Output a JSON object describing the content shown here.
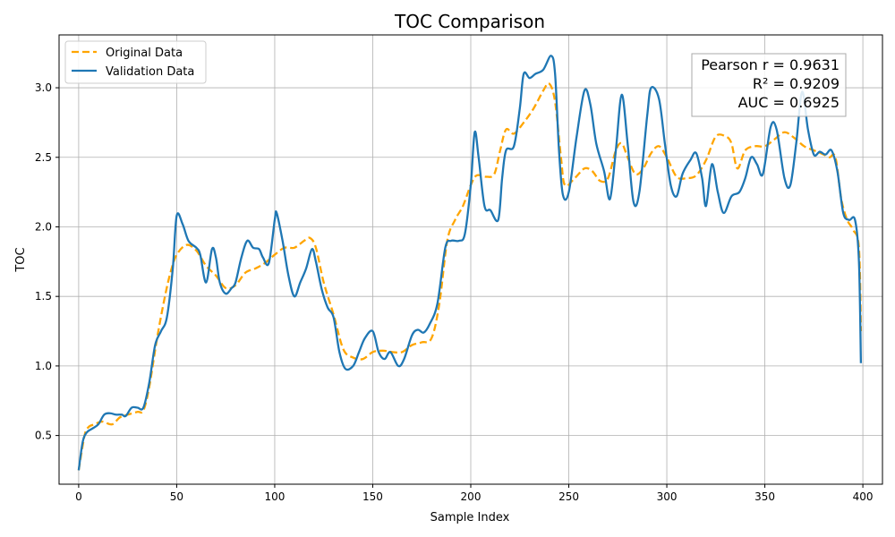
{
  "chart_data": {
    "type": "line",
    "title": "TOC Comparison",
    "xlabel": "Sample Index",
    "ylabel": "TOC",
    "xlim": [
      -10,
      410
    ],
    "ylim": [
      0.15,
      3.38
    ],
    "xticks": [
      0,
      50,
      100,
      150,
      200,
      250,
      300,
      350,
      400
    ],
    "yticks": [
      0.5,
      1.0,
      1.5,
      2.0,
      2.5,
      3.0
    ],
    "xtick_labels": [
      "0",
      "50",
      "100",
      "150",
      "200",
      "250",
      "300",
      "350",
      "400"
    ],
    "ytick_labels": [
      "0.5",
      "1.0",
      "1.5",
      "2.0",
      "2.5",
      "3.0"
    ],
    "grid": true,
    "legend_position": "top-left",
    "series": [
      {
        "name": "Original Data",
        "color": "#ffa500",
        "style": "dashed",
        "points": [
          [
            0,
            0.25
          ],
          [
            3,
            0.5
          ],
          [
            5,
            0.56
          ],
          [
            8,
            0.58
          ],
          [
            12,
            0.6
          ],
          [
            17,
            0.58
          ],
          [
            21,
            0.63
          ],
          [
            25,
            0.65
          ],
          [
            30,
            0.67
          ],
          [
            33,
            0.68
          ],
          [
            36,
            0.85
          ],
          [
            40,
            1.2
          ],
          [
            44,
            1.5
          ],
          [
            47,
            1.68
          ],
          [
            50,
            1.8
          ],
          [
            55,
            1.87
          ],
          [
            60,
            1.83
          ],
          [
            65,
            1.72
          ],
          [
            70,
            1.65
          ],
          [
            75,
            1.56
          ],
          [
            80,
            1.58
          ],
          [
            85,
            1.67
          ],
          [
            90,
            1.7
          ],
          [
            95,
            1.74
          ],
          [
            100,
            1.8
          ],
          [
            105,
            1.85
          ],
          [
            110,
            1.85
          ],
          [
            115,
            1.9
          ],
          [
            118,
            1.92
          ],
          [
            121,
            1.85
          ],
          [
            125,
            1.6
          ],
          [
            130,
            1.37
          ],
          [
            135,
            1.12
          ],
          [
            140,
            1.06
          ],
          [
            145,
            1.05
          ],
          [
            150,
            1.1
          ],
          [
            155,
            1.11
          ],
          [
            160,
            1.1
          ],
          [
            165,
            1.1
          ],
          [
            170,
            1.15
          ],
          [
            175,
            1.17
          ],
          [
            180,
            1.2
          ],
          [
            184,
            1.45
          ],
          [
            188,
            1.9
          ],
          [
            192,
            2.05
          ],
          [
            196,
            2.15
          ],
          [
            200,
            2.3
          ],
          [
            203,
            2.37
          ],
          [
            208,
            2.36
          ],
          [
            212,
            2.38
          ],
          [
            215,
            2.55
          ],
          [
            218,
            2.7
          ],
          [
            222,
            2.67
          ],
          [
            227,
            2.75
          ],
          [
            232,
            2.85
          ],
          [
            237,
            2.98
          ],
          [
            240,
            3.03
          ],
          [
            243,
            2.9
          ],
          [
            246,
            2.5
          ],
          [
            248,
            2.3
          ],
          [
            253,
            2.35
          ],
          [
            258,
            2.42
          ],
          [
            262,
            2.4
          ],
          [
            266,
            2.33
          ],
          [
            270,
            2.35
          ],
          [
            274,
            2.55
          ],
          [
            277,
            2.6
          ],
          [
            280,
            2.5
          ],
          [
            284,
            2.38
          ],
          [
            288,
            2.42
          ],
          [
            292,
            2.53
          ],
          [
            296,
            2.58
          ],
          [
            300,
            2.5
          ],
          [
            305,
            2.36
          ],
          [
            310,
            2.35
          ],
          [
            315,
            2.37
          ],
          [
            320,
            2.48
          ],
          [
            325,
            2.65
          ],
          [
            330,
            2.65
          ],
          [
            333,
            2.6
          ],
          [
            336,
            2.42
          ],
          [
            340,
            2.55
          ],
          [
            345,
            2.58
          ],
          [
            350,
            2.58
          ],
          [
            355,
            2.63
          ],
          [
            360,
            2.68
          ],
          [
            365,
            2.64
          ],
          [
            370,
            2.58
          ],
          [
            375,
            2.55
          ],
          [
            380,
            2.52
          ],
          [
            383,
            2.5
          ],
          [
            386,
            2.5
          ],
          [
            389,
            2.2
          ],
          [
            392,
            2.05
          ],
          [
            395,
            1.98
          ],
          [
            398,
            1.85
          ],
          [
            399,
            1.25
          ]
        ]
      },
      {
        "name": "Validation Data",
        "color": "#1f77b4",
        "style": "solid",
        "points": [
          [
            0,
            0.25
          ],
          [
            2,
            0.45
          ],
          [
            4,
            0.52
          ],
          [
            7,
            0.55
          ],
          [
            10,
            0.58
          ],
          [
            13,
            0.65
          ],
          [
            16,
            0.66
          ],
          [
            19,
            0.65
          ],
          [
            22,
            0.65
          ],
          [
            24,
            0.64
          ],
          [
            27,
            0.7
          ],
          [
            30,
            0.7
          ],
          [
            33,
            0.7
          ],
          [
            36,
            0.88
          ],
          [
            39,
            1.15
          ],
          [
            42,
            1.25
          ],
          [
            45,
            1.35
          ],
          [
            48,
            1.7
          ],
          [
            50,
            2.08
          ],
          [
            53,
            2.02
          ],
          [
            56,
            1.9
          ],
          [
            60,
            1.85
          ],
          [
            62,
            1.8
          ],
          [
            65,
            1.6
          ],
          [
            68,
            1.84
          ],
          [
            70,
            1.78
          ],
          [
            72,
            1.6
          ],
          [
            75,
            1.52
          ],
          [
            78,
            1.56
          ],
          [
            80,
            1.6
          ],
          [
            83,
            1.78
          ],
          [
            86,
            1.9
          ],
          [
            89,
            1.85
          ],
          [
            92,
            1.84
          ],
          [
            94,
            1.78
          ],
          [
            97,
            1.74
          ],
          [
            100,
            2.05
          ],
          [
            101,
            2.1
          ],
          [
            104,
            1.9
          ],
          [
            107,
            1.65
          ],
          [
            110,
            1.5
          ],
          [
            113,
            1.6
          ],
          [
            116,
            1.7
          ],
          [
            119,
            1.84
          ],
          [
            121,
            1.75
          ],
          [
            124,
            1.55
          ],
          [
            127,
            1.42
          ],
          [
            130,
            1.35
          ],
          [
            133,
            1.1
          ],
          [
            136,
            0.98
          ],
          [
            140,
            1.0
          ],
          [
            143,
            1.1
          ],
          [
            146,
            1.2
          ],
          [
            150,
            1.25
          ],
          [
            153,
            1.1
          ],
          [
            156,
            1.05
          ],
          [
            159,
            1.1
          ],
          [
            163,
            1.0
          ],
          [
            166,
            1.05
          ],
          [
            170,
            1.22
          ],
          [
            173,
            1.26
          ],
          [
            176,
            1.24
          ],
          [
            179,
            1.3
          ],
          [
            183,
            1.45
          ],
          [
            187,
            1.85
          ],
          [
            190,
            1.9
          ],
          [
            194,
            1.9
          ],
          [
            197,
            1.95
          ],
          [
            200,
            2.3
          ],
          [
            202,
            2.68
          ],
          [
            204,
            2.5
          ],
          [
            207,
            2.15
          ],
          [
            210,
            2.12
          ],
          [
            214,
            2.05
          ],
          [
            216,
            2.35
          ],
          [
            218,
            2.55
          ],
          [
            222,
            2.58
          ],
          [
            225,
            2.85
          ],
          [
            227,
            3.1
          ],
          [
            230,
            3.07
          ],
          [
            233,
            3.1
          ],
          [
            237,
            3.13
          ],
          [
            241,
            3.23
          ],
          [
            243,
            3.1
          ],
          [
            245,
            2.55
          ],
          [
            247,
            2.23
          ],
          [
            250,
            2.25
          ],
          [
            254,
            2.65
          ],
          [
            258,
            2.98
          ],
          [
            261,
            2.88
          ],
          [
            264,
            2.6
          ],
          [
            268,
            2.4
          ],
          [
            271,
            2.2
          ],
          [
            274,
            2.55
          ],
          [
            277,
            2.95
          ],
          [
            280,
            2.6
          ],
          [
            283,
            2.18
          ],
          [
            286,
            2.25
          ],
          [
            290,
            2.8
          ],
          [
            292,
            3.0
          ],
          [
            296,
            2.92
          ],
          [
            299,
            2.6
          ],
          [
            302,
            2.3
          ],
          [
            305,
            2.22
          ],
          [
            308,
            2.38
          ],
          [
            312,
            2.48
          ],
          [
            315,
            2.53
          ],
          [
            318,
            2.35
          ],
          [
            320,
            2.15
          ],
          [
            323,
            2.45
          ],
          [
            326,
            2.25
          ],
          [
            329,
            2.1
          ],
          [
            333,
            2.22
          ],
          [
            337,
            2.25
          ],
          [
            340,
            2.35
          ],
          [
            343,
            2.5
          ],
          [
            346,
            2.45
          ],
          [
            349,
            2.38
          ],
          [
            353,
            2.72
          ],
          [
            356,
            2.7
          ],
          [
            360,
            2.35
          ],
          [
            363,
            2.3
          ],
          [
            366,
            2.6
          ],
          [
            369,
            2.97
          ],
          [
            372,
            2.7
          ],
          [
            375,
            2.52
          ],
          [
            378,
            2.54
          ],
          [
            381,
            2.52
          ],
          [
            384,
            2.55
          ],
          [
            387,
            2.4
          ],
          [
            390,
            2.1
          ],
          [
            393,
            2.05
          ],
          [
            396,
            2.05
          ],
          [
            398,
            1.75
          ],
          [
            399,
            1.02
          ]
        ]
      }
    ],
    "annotations": [
      "Pearson r = 0.9631",
      "R² = 0.9209",
      "AUC = 0.6925"
    ]
  }
}
